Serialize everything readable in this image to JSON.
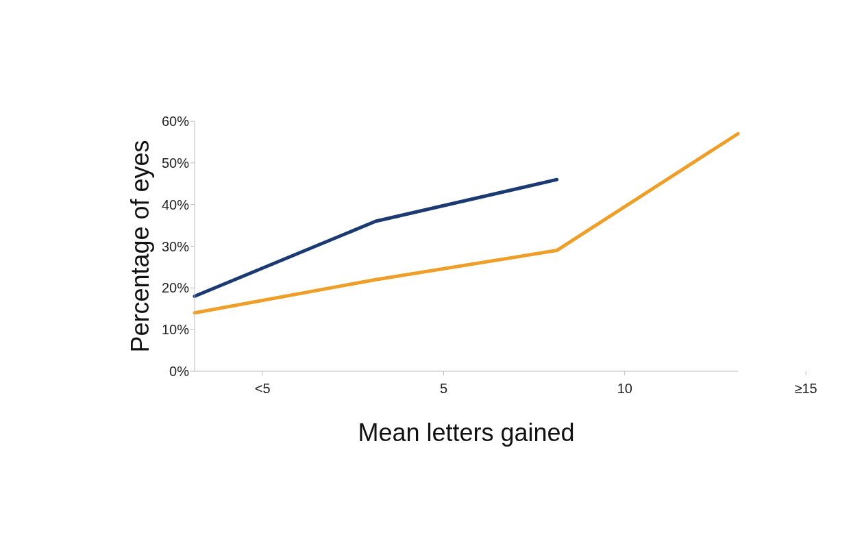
{
  "chart_data": {
    "type": "line",
    "xlabel": "Mean letters gained",
    "ylabel": "Percentage of eyes",
    "categories": [
      "<5",
      "5",
      "10",
      "≥15"
    ],
    "series": [
      {
        "color": "#1c3a72",
        "values": [
          18,
          36,
          46,
          null
        ]
      },
      {
        "color": "#ee9f2a",
        "values": [
          14,
          22,
          29,
          57
        ]
      }
    ],
    "ylim": [
      0,
      60
    ],
    "yticks": [
      {
        "value": 0,
        "label": "0%"
      },
      {
        "value": 10,
        "label": "10%"
      },
      {
        "value": 20,
        "label": "20%"
      },
      {
        "value": 30,
        "label": "30%"
      },
      {
        "value": 40,
        "label": "40%"
      },
      {
        "value": 50,
        "label": "50%"
      },
      {
        "value": 60,
        "label": "60%"
      }
    ],
    "grid": false,
    "legend": false,
    "marker": "none",
    "line_style": "solid"
  }
}
